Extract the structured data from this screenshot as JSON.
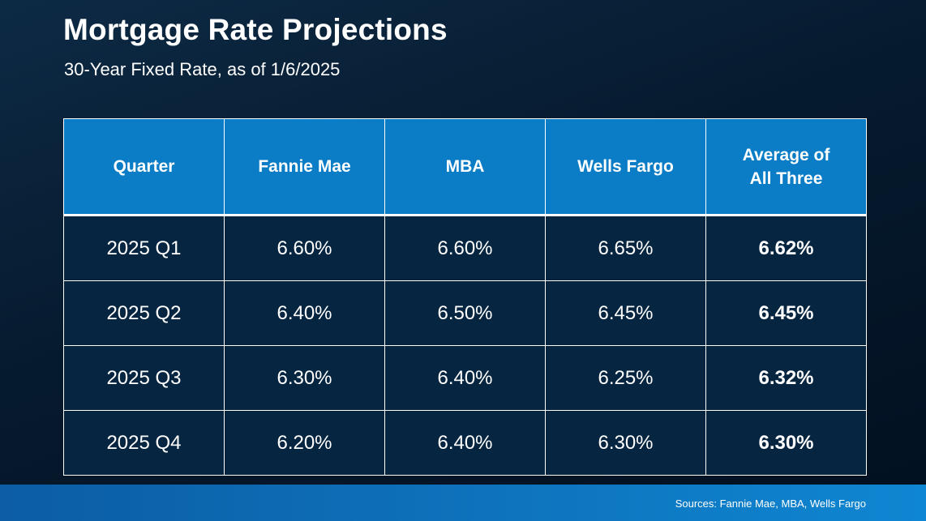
{
  "title": "Mortgage Rate Projections",
  "subtitle": "30-Year Fixed Rate, as of 1/6/2025",
  "sources": "Sources: Fannie Mae, MBA, Wells Fargo",
  "colors": {
    "header_bg": "#0b7cc6",
    "cell_bg": "#062540",
    "footer_bar": "#0f86d2",
    "text": "#ffffff"
  },
  "chart_data": {
    "type": "table",
    "columns": [
      "Quarter",
      "Fannie Mae",
      "MBA",
      "Wells Fargo",
      "Average of All Three"
    ],
    "rows": [
      [
        "2025 Q1",
        "6.60%",
        "6.60%",
        "6.65%",
        "6.62%"
      ],
      [
        "2025 Q2",
        "6.40%",
        "6.50%",
        "6.45%",
        "6.45%"
      ],
      [
        "2025 Q3",
        "6.30%",
        "6.40%",
        "6.25%",
        "6.32%"
      ],
      [
        "2025 Q4",
        "6.20%",
        "6.40%",
        "6.30%",
        "6.30%"
      ]
    ]
  }
}
